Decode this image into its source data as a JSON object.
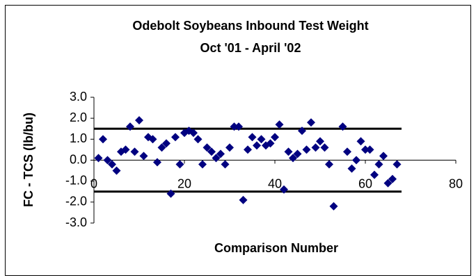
{
  "chart_data": {
    "type": "scatter",
    "title": "Odebolt Soybeans Inbound Test Weight",
    "subtitle": "Oct '01 - April '02",
    "x_label": "Comparison Number",
    "y_label": "FC - TCS (lb/bu)",
    "xlim": [
      0,
      80
    ],
    "xticks": [
      0,
      20,
      40,
      60,
      80
    ],
    "ylim": [
      -3,
      3
    ],
    "yticks": [
      {
        "value": 3,
        "label": "3.0"
      },
      {
        "value": 2,
        "label": "2.0"
      },
      {
        "value": 1,
        "label": "1.0"
      },
      {
        "value": 0,
        "label": "0.0"
      },
      {
        "value": -1,
        "label": "-1.0"
      },
      {
        "value": -2,
        "label": "-2.0"
      },
      {
        "value": -3,
        "label": "-3.0"
      }
    ],
    "series": [
      {
        "color": "#000080",
        "x": [
          1,
          2,
          3,
          4,
          5,
          6,
          7,
          8,
          9,
          10,
          11,
          12,
          13,
          14,
          15,
          16,
          17,
          18,
          19,
          20,
          21,
          22,
          23,
          24,
          25,
          26,
          27,
          28,
          29,
          30,
          31,
          32,
          33,
          34,
          35,
          36,
          37,
          38,
          39,
          40,
          41,
          42,
          43,
          44,
          45,
          46,
          47,
          48,
          49,
          50,
          51,
          52,
          53,
          55,
          56,
          57,
          58,
          59,
          60,
          61,
          62,
          63,
          64,
          65,
          66,
          67
        ],
        "values": [
          0.1,
          1.0,
          0.0,
          -0.2,
          -0.5,
          0.4,
          0.5,
          1.6,
          0.4,
          1.9,
          0.2,
          1.1,
          1.0,
          -0.1,
          0.6,
          0.8,
          -1.6,
          1.1,
          -0.2,
          1.3,
          1.4,
          1.3,
          1.0,
          -0.2,
          0.6,
          0.4,
          0.1,
          0.3,
          -0.2,
          0.6,
          1.6,
          1.6,
          -1.9,
          0.5,
          1.1,
          0.7,
          1.0,
          0.7,
          0.8,
          1.1,
          1.7,
          -1.4,
          0.4,
          0.1,
          0.3,
          1.4,
          0.5,
          1.8,
          0.6,
          0.9,
          0.6,
          -0.2,
          -2.2,
          1.6,
          0.4,
          -0.4,
          0.0,
          0.9,
          0.5,
          0.5,
          -0.7,
          -0.2,
          0.2,
          -1.1,
          -0.9,
          -0.2
        ]
      }
    ],
    "limit_lines": [
      {
        "color": "#000000",
        "x": [
          0,
          68
        ],
        "values": [
          1.5,
          1.5
        ]
      },
      {
        "color": "#000000",
        "x": [
          0,
          68
        ],
        "values": [
          -1.5,
          -1.5
        ]
      }
    ]
  }
}
